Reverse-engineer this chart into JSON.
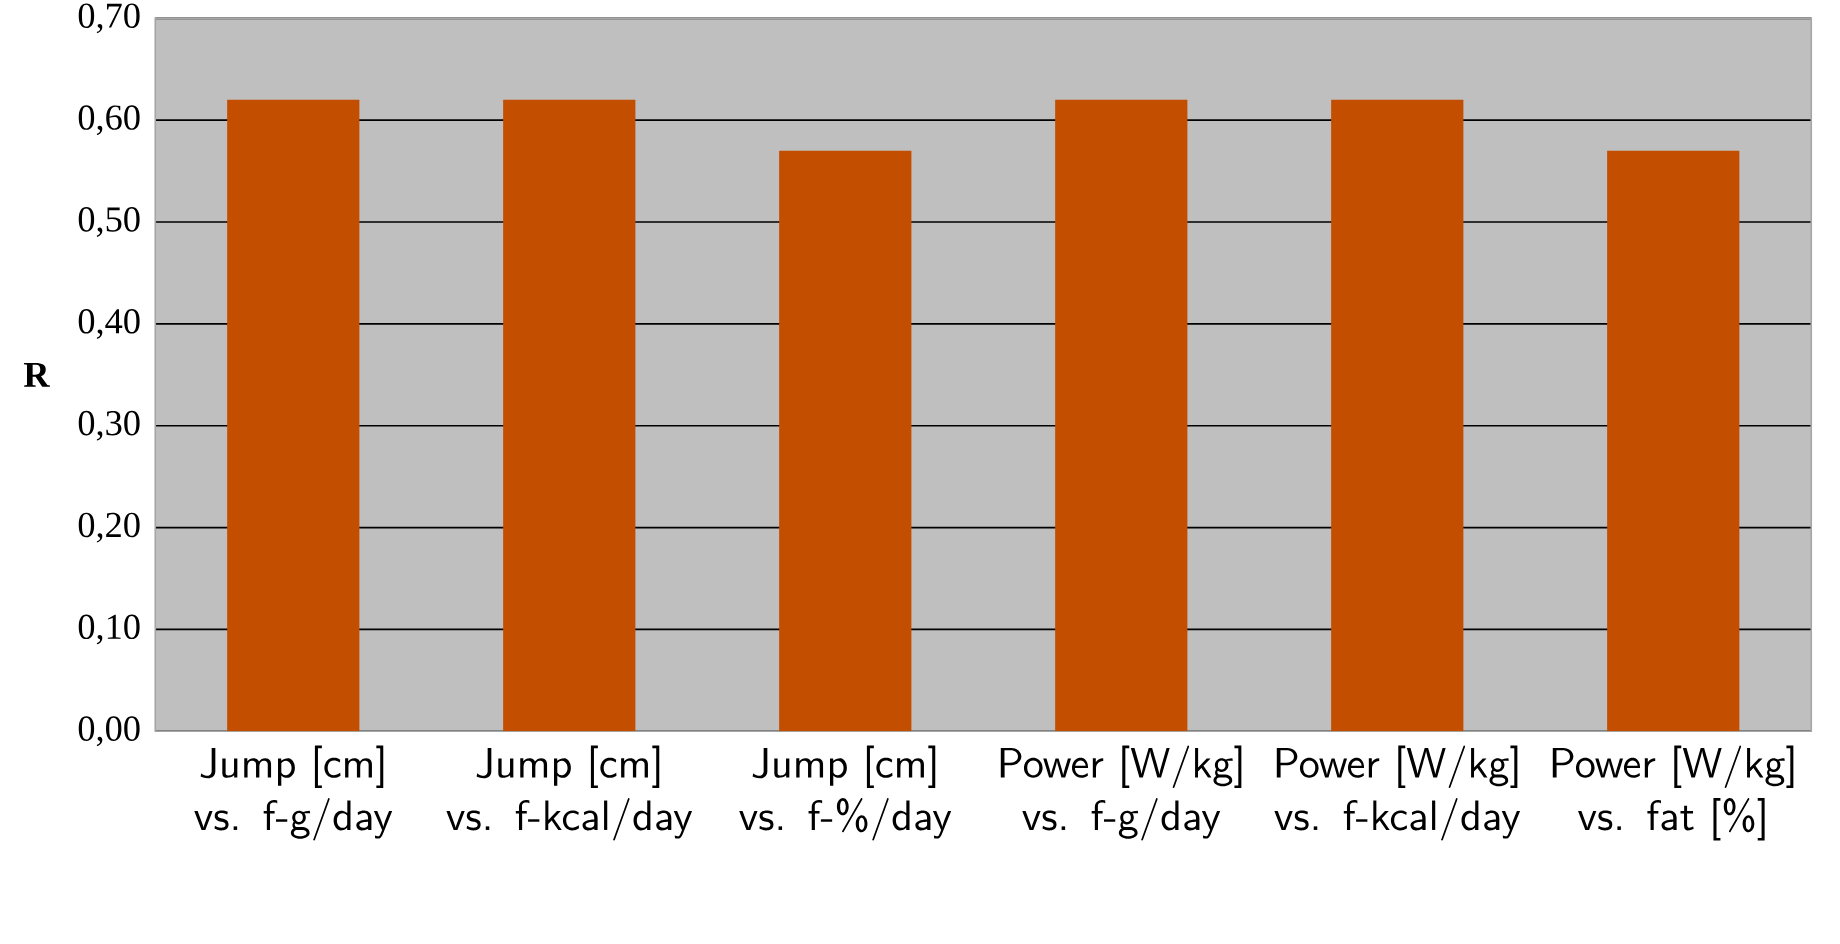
{
  "chart_data": {
    "type": "bar",
    "ylabel": "R",
    "categories": [
      "Jump [cm] vs. f-g/day",
      "Jump [cm] vs. f-kcal/day",
      "Jump [cm] vs. f-%/day",
      "Power [W/kg] vs. f-g/day",
      "Power [W/kg] vs. f-kcal/day",
      "Power [W/kg] vs. fat [%]"
    ],
    "values": [
      0.62,
      0.62,
      0.57,
      0.62,
      0.62,
      0.57
    ],
    "color": "#c44e00",
    "ylim": [
      0,
      0.7
    ],
    "yticks": [
      {
        "value": 0,
        "label": "0,00"
      },
      {
        "value": 0.1,
        "label": "0,10"
      },
      {
        "value": 0.2,
        "label": "0,20"
      },
      {
        "value": 0.3,
        "label": "0,30"
      },
      {
        "value": 0.4,
        "label": "0,40"
      },
      {
        "value": 0.5,
        "label": "0,50"
      },
      {
        "value": 0.6,
        "label": "0,60"
      },
      {
        "value": 0.7,
        "label": "0,70"
      }
    ],
    "grid": "y"
  }
}
